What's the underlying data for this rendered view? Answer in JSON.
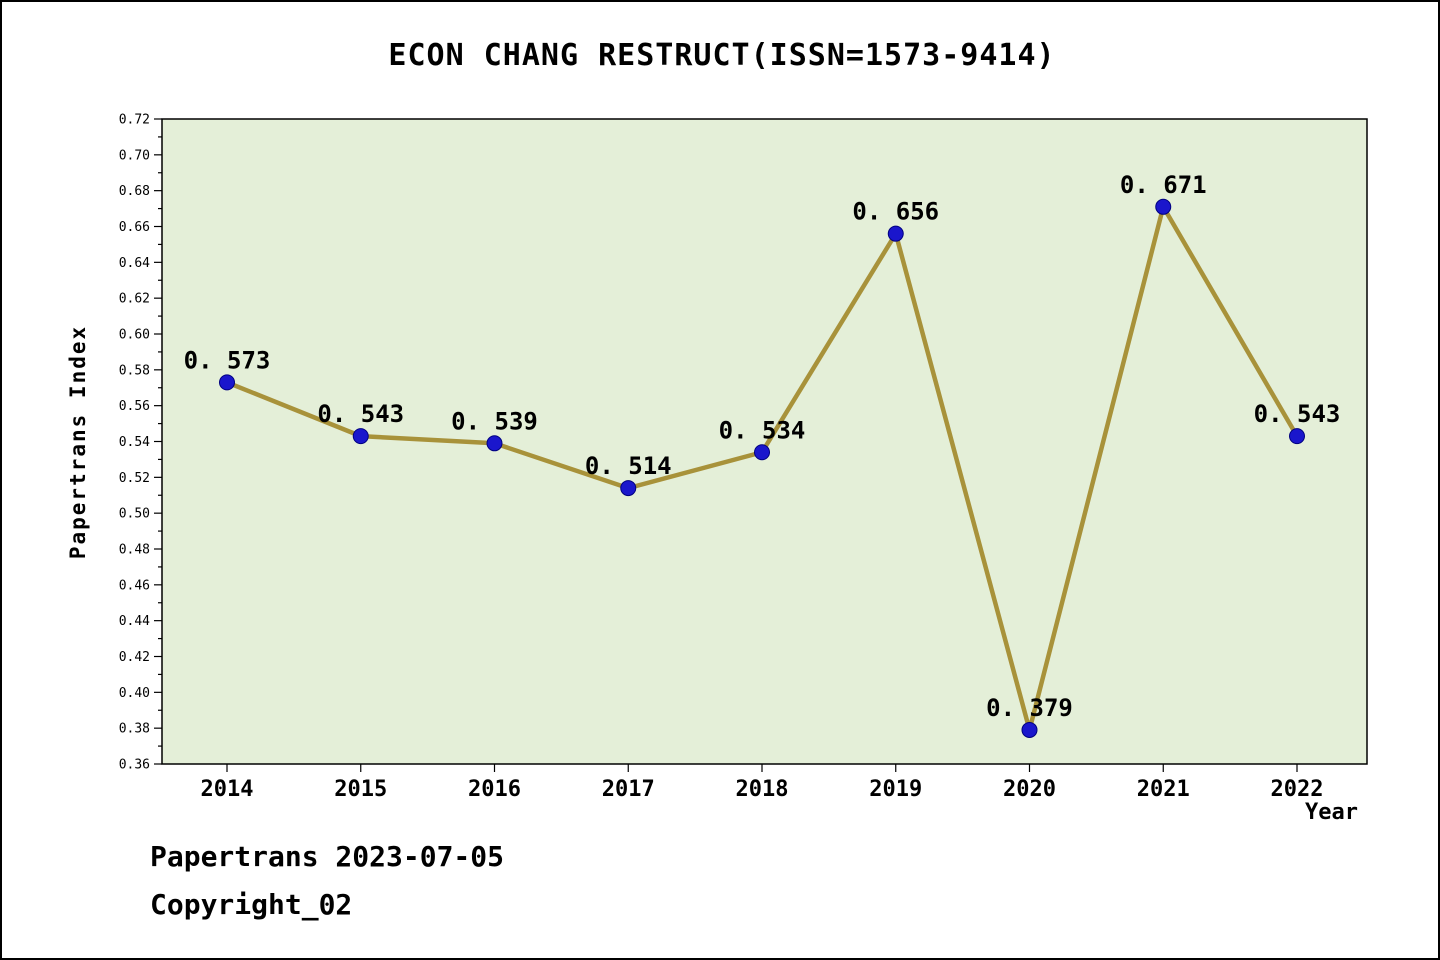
{
  "title": "ECON CHANG RESTRUCT(ISSN=1573-9414)",
  "footer": {
    "line1": "Papertrans 2023-07-05",
    "line2": "Copyright_02"
  },
  "chart_data": {
    "type": "line",
    "title": "ECON CHANG RESTRUCT(ISSN=1573-9414)",
    "xlabel": "Year",
    "ylabel": "Papertrans Index",
    "x": [
      2014,
      2015,
      2016,
      2017,
      2018,
      2019,
      2020,
      2021,
      2022
    ],
    "series": [
      {
        "name": "Papertrans Index",
        "values": [
          0.573,
          0.543,
          0.539,
          0.514,
          0.534,
          0.656,
          0.379,
          0.671,
          0.543
        ],
        "point_labels": [
          "0. 573",
          "0. 543",
          "0. 539",
          "0. 514",
          "0. 534",
          "0. 656",
          "0. 379",
          "0. 671",
          "0. 543"
        ]
      }
    ],
    "ylim": [
      0.36,
      0.72
    ],
    "ytick_step": 0.02,
    "grid": false,
    "legend": "none",
    "colors": {
      "line": "#a8923a",
      "marker_fill": "#1a16cc",
      "marker_edge": "#000080",
      "plot_bg": "#e4efd8",
      "axis": "#000000"
    }
  }
}
